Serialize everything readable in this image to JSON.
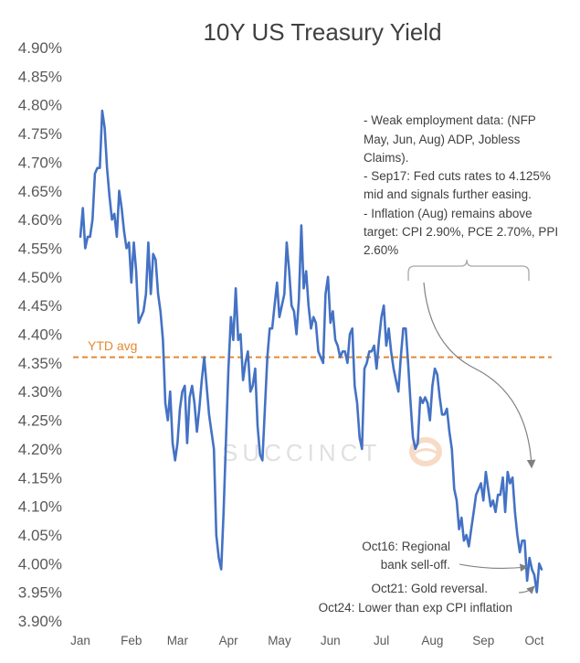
{
  "chart_data": {
    "type": "line",
    "title": "10Y US Treasury Yield",
    "xlabel": "",
    "ylabel": "",
    "ylim": [
      3.9,
      4.9
    ],
    "y_tick_labels": [
      "4.90%",
      "4.85%",
      "4.80%",
      "4.75%",
      "4.70%",
      "4.65%",
      "4.60%",
      "4.55%",
      "4.50%",
      "4.45%",
      "4.40%",
      "4.35%",
      "4.30%",
      "4.25%",
      "4.20%",
      "4.15%",
      "4.10%",
      "4.05%",
      "4.00%",
      "3.95%",
      "3.90%"
    ],
    "x_tick_labels": [
      "Jan",
      "Feb",
      "Mar",
      "Apr",
      "May",
      "Jun",
      "Jul",
      "Aug",
      "Sep",
      "Oct"
    ],
    "x_units": "trading days since Jan 2",
    "x_tick_days": [
      0,
      21,
      40,
      61,
      82,
      103,
      124,
      145,
      166,
      187
    ],
    "series": [
      {
        "name": "10Y US Treasury Yield",
        "color": "#4472C4",
        "values": [
          4.57,
          4.62,
          4.55,
          4.57,
          4.57,
          4.6,
          4.68,
          4.69,
          4.69,
          4.79,
          4.76,
          4.69,
          4.64,
          4.6,
          4.61,
          4.57,
          4.65,
          4.62,
          4.58,
          4.55,
          4.56,
          4.49,
          4.56,
          4.51,
          4.42,
          4.43,
          4.44,
          4.47,
          4.56,
          4.47,
          4.54,
          4.53,
          4.47,
          4.44,
          4.39,
          4.28,
          4.25,
          4.3,
          4.21,
          4.18,
          4.21,
          4.27,
          4.3,
          4.31,
          4.21,
          4.29,
          4.31,
          4.28,
          4.23,
          4.27,
          4.32,
          4.36,
          4.31,
          4.26,
          4.23,
          4.2,
          4.05,
          4.01,
          3.99,
          4.09,
          4.22,
          4.34,
          4.43,
          4.39,
          4.48,
          4.39,
          4.4,
          4.32,
          4.35,
          4.37,
          4.3,
          4.31,
          4.34,
          4.24,
          4.19,
          4.18,
          4.27,
          4.36,
          4.41,
          4.41,
          4.45,
          4.49,
          4.43,
          4.45,
          4.47,
          4.56,
          4.51,
          4.45,
          4.44,
          4.4,
          4.46,
          4.59,
          4.48,
          4.51,
          4.45,
          4.41,
          4.43,
          4.42,
          4.37,
          4.36,
          4.35,
          4.47,
          4.5,
          4.42,
          4.44,
          4.39,
          4.38,
          4.36,
          4.37,
          4.37,
          4.35,
          4.4,
          4.41,
          4.31,
          4.28,
          4.22,
          4.2,
          4.34,
          4.35,
          4.37,
          4.37,
          4.38,
          4.34,
          4.39,
          4.43,
          4.45,
          4.38,
          4.41,
          4.37,
          4.34,
          4.32,
          4.3,
          4.36,
          4.41,
          4.41,
          4.35,
          4.28,
          4.22,
          4.2,
          4.21,
          4.29,
          4.28,
          4.29,
          4.28,
          4.25,
          4.31,
          4.34,
          4.33,
          4.29,
          4.26,
          4.26,
          4.27,
          4.23,
          4.2,
          4.13,
          4.11,
          4.06,
          4.08,
          4.04,
          4.05,
          4.03,
          4.06,
          4.09,
          4.12,
          4.13,
          4.14,
          4.11,
          4.16,
          4.13,
          4.1,
          4.11,
          4.09,
          4.12,
          4.12,
          4.15,
          4.09,
          4.16,
          4.14,
          4.15,
          4.09,
          4.05,
          4.02,
          4.04,
          4.04,
          3.97,
          4.01,
          3.99,
          3.98,
          3.95,
          4.0,
          3.99
        ]
      }
    ],
    "reference_line": {
      "label": "YTD avg",
      "value": 4.36,
      "color": "#E6892F",
      "style": "dashed"
    },
    "annotations": [
      "- Weak employment data: (NFP",
      "May, Jun, Aug) ADP, Jobless",
      "Claims).",
      "- Sep17: Fed cuts rates to 4.125%",
      "mid and signals further easing.",
      "- Inflation (Aug) remains above",
      "target: CPI 2.90%, PCE 2.70%, PPI",
      "2.60%"
    ],
    "callouts": [
      {
        "lines": [
          "Oct16: Regional",
          "bank sell-off."
        ]
      },
      {
        "lines": [
          "Oct21: Gold reversal."
        ]
      },
      {
        "lines": [
          "Oct24: Lower than exp CPI inflation"
        ]
      }
    ],
    "watermark": "SUCCINCT",
    "grid": false,
    "legend": "none"
  }
}
